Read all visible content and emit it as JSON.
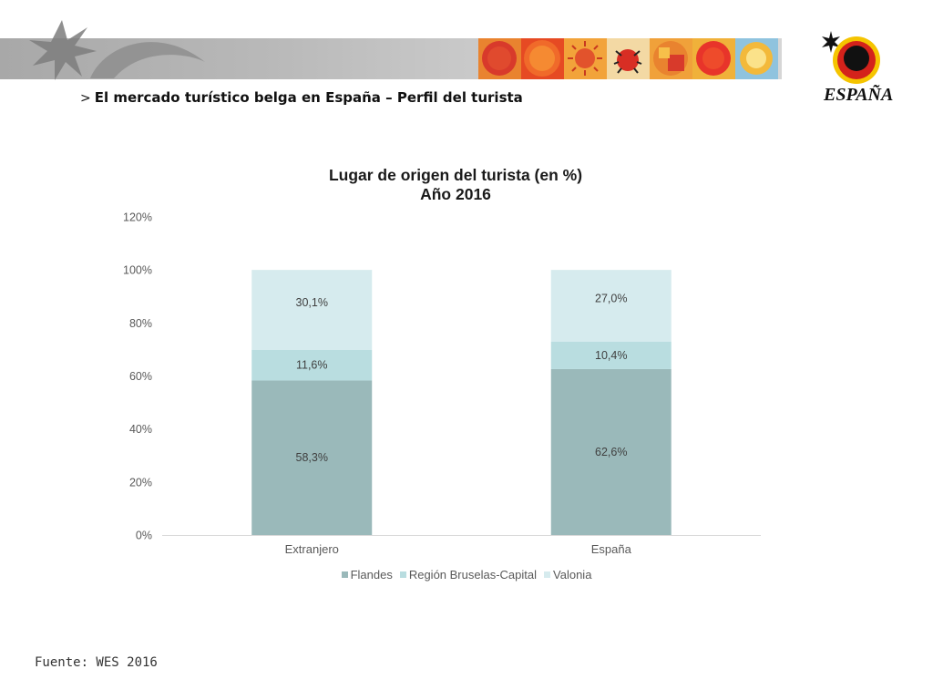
{
  "header": {
    "heading_arrow": ">",
    "heading": "El mercado turístico belga en España – Perfil del turista",
    "logo_text": "ESPAÑA",
    "tile_colors": [
      "#d83a2b",
      "#e2532c",
      "#e9832f",
      "#5b8ec4",
      "#f0a13a",
      "#e64a23",
      "#8fc3de"
    ]
  },
  "chart_data": {
    "type": "bar",
    "stacked": true,
    "title": "Lugar de origen del turista (en %)",
    "subtitle": "Año 2016",
    "categories": [
      "Extranjero",
      "España"
    ],
    "series": [
      {
        "name": "Flandes",
        "values": [
          58.3,
          62.6
        ],
        "labels": [
          "58,3%",
          "62,6%"
        ],
        "color": "#9ab9ba"
      },
      {
        "name": "Región Bruselas-Capital",
        "values": [
          11.6,
          10.4
        ],
        "labels": [
          "11,6%",
          "10,4%"
        ],
        "color": "#b9dde0"
      },
      {
        "name": "Valonia",
        "values": [
          30.1,
          27.0
        ],
        "labels": [
          "30,1%",
          "27,0%"
        ],
        "color": "#d6ebee"
      }
    ],
    "ylim": [
      0,
      120
    ],
    "yticks": [
      "0%",
      "20%",
      "40%",
      "60%",
      "80%",
      "100%",
      "120%"
    ],
    "ytick_values": [
      0,
      20,
      40,
      60,
      80,
      100,
      120
    ],
    "grid": false,
    "legend_position": "bottom"
  },
  "footer": {
    "source": "Fuente: WES 2016"
  }
}
